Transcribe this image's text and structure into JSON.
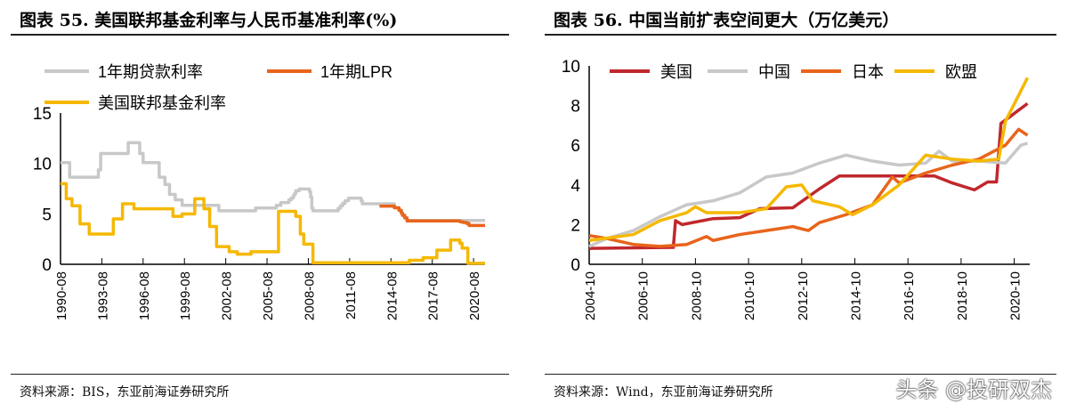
{
  "chart_data": [
    {
      "type": "line",
      "title": "图表 55. 美国联邦基金利率与人民币基准利率(%)",
      "source": "资料来源：BIS，东亚前海证券研究所",
      "ylim": [
        0,
        15
      ],
      "yticks": [
        0,
        5,
        10,
        15
      ],
      "xlim": [
        "1990-08",
        "2021-06"
      ],
      "xticks": [
        "1990-08",
        "1993-08",
        "1996-08",
        "1999-08",
        "2002-08",
        "2005-08",
        "2008-08",
        "2011-08",
        "2014-08",
        "2017-08",
        "2020-08"
      ],
      "step": true,
      "legend": "top-left",
      "series": [
        {
          "name": "1年期贷款利率",
          "color": "#c8c8c8",
          "points": [
            [
              "1990-08",
              10.08
            ],
            [
              "1991-04",
              8.64
            ],
            [
              "1993-05",
              9.36
            ],
            [
              "1993-07",
              10.98
            ],
            [
              "1995-01",
              10.98
            ],
            [
              "1995-07",
              12.06
            ],
            [
              "1996-05",
              10.98
            ],
            [
              "1996-08",
              10.08
            ],
            [
              "1997-10",
              8.64
            ],
            [
              "1998-03",
              7.92
            ],
            [
              "1998-07",
              6.93
            ],
            [
              "1998-12",
              6.39
            ],
            [
              "1999-06",
              5.85
            ],
            [
              "2002-02",
              5.31
            ],
            [
              "2004-10",
              5.58
            ],
            [
              "2006-04",
              5.85
            ],
            [
              "2006-08",
              6.12
            ],
            [
              "2007-03",
              6.39
            ],
            [
              "2007-05",
              6.57
            ],
            [
              "2007-07",
              6.84
            ],
            [
              "2007-08",
              7.02
            ],
            [
              "2007-09",
              7.29
            ],
            [
              "2007-12",
              7.47
            ],
            [
              "2008-09",
              7.2
            ],
            [
              "2008-10",
              6.66
            ],
            [
              "2008-11",
              5.58
            ],
            [
              "2008-12",
              5.31
            ],
            [
              "2010-10",
              5.56
            ],
            [
              "2010-12",
              5.81
            ],
            [
              "2011-02",
              6.06
            ],
            [
              "2011-04",
              6.31
            ],
            [
              "2011-07",
              6.56
            ],
            [
              "2012-06",
              6.31
            ],
            [
              "2012-07",
              6.0
            ],
            [
              "2014-11",
              5.6
            ],
            [
              "2015-03",
              5.35
            ],
            [
              "2015-05",
              5.1
            ],
            [
              "2015-06",
              4.85
            ],
            [
              "2015-08",
              4.6
            ],
            [
              "2015-10",
              4.35
            ],
            [
              "2021-06",
              4.35
            ]
          ]
        },
        {
          "name": "1年期LPR",
          "color": "#e8641b",
          "points": [
            [
              "2013-10",
              5.77
            ],
            [
              "2014-11",
              5.6
            ],
            [
              "2015-03",
              5.35
            ],
            [
              "2015-05",
              5.1
            ],
            [
              "2015-06",
              4.85
            ],
            [
              "2015-08",
              4.6
            ],
            [
              "2015-10",
              4.3
            ],
            [
              "2019-08",
              4.25
            ],
            [
              "2019-09",
              4.2
            ],
            [
              "2019-11",
              4.15
            ],
            [
              "2020-02",
              4.05
            ],
            [
              "2020-04",
              3.85
            ],
            [
              "2021-06",
              3.85
            ]
          ]
        },
        {
          "name": "美国联邦基金利率",
          "color": "#f5b800",
          "points": [
            [
              "1990-08",
              8.0
            ],
            [
              "1991-01",
              6.5
            ],
            [
              "1991-06",
              5.8
            ],
            [
              "1992-01",
              4.0
            ],
            [
              "1992-09",
              3.0
            ],
            [
              "1994-02",
              3.0
            ],
            [
              "1994-06",
              4.5
            ],
            [
              "1995-02",
              6.0
            ],
            [
              "1995-12",
              5.5
            ],
            [
              "1997-03",
              5.5
            ],
            [
              "1998-10",
              4.75
            ],
            [
              "1999-06",
              5.0
            ],
            [
              "2000-05",
              6.5
            ],
            [
              "2001-01",
              5.5
            ],
            [
              "2001-06",
              3.75
            ],
            [
              "2001-12",
              1.75
            ],
            [
              "2002-11",
              1.25
            ],
            [
              "2003-06",
              1.0
            ],
            [
              "2004-06",
              1.25
            ],
            [
              "2006-06",
              5.25
            ],
            [
              "2007-09",
              4.75
            ],
            [
              "2008-01",
              3.0
            ],
            [
              "2008-04",
              2.0
            ],
            [
              "2008-12",
              0.15
            ],
            [
              "2015-12",
              0.4
            ],
            [
              "2016-12",
              0.65
            ],
            [
              "2017-12",
              1.4
            ],
            [
              "2018-12",
              2.4
            ],
            [
              "2019-08",
              2.1
            ],
            [
              "2019-10",
              1.6
            ],
            [
              "2020-03",
              0.1
            ],
            [
              "2021-06",
              0.1
            ]
          ]
        }
      ]
    },
    {
      "type": "line",
      "title": "图表 56. 中国当前扩表空间更大（万亿美元）",
      "source": "资料来源：Wind，东亚前海证券研究所",
      "ylim": [
        0,
        10
      ],
      "yticks": [
        0,
        2,
        4,
        6,
        8,
        10
      ],
      "xlim": [
        "2004-10",
        "2021-05"
      ],
      "xticks": [
        "2004-10",
        "2006-10",
        "2008-10",
        "2010-10",
        "2012-10",
        "2014-10",
        "2016-10",
        "2018-10",
        "2020-10"
      ],
      "step": false,
      "legend": "top",
      "series": [
        {
          "name": "美国",
          "color": "#c0282d",
          "points": [
            [
              "2004-10",
              0.8
            ],
            [
              "2007-12",
              0.85
            ],
            [
              "2008-01",
              2.2
            ],
            [
              "2008-04",
              2.0
            ],
            [
              "2009-06",
              2.3
            ],
            [
              "2010-06",
              2.35
            ],
            [
              "2011-03",
              2.8
            ],
            [
              "2012-06",
              2.85
            ],
            [
              "2013-06",
              3.8
            ],
            [
              "2014-03",
              4.45
            ],
            [
              "2017-10",
              4.45
            ],
            [
              "2018-06",
              4.1
            ],
            [
              "2019-04",
              3.75
            ],
            [
              "2019-10",
              4.15
            ],
            [
              "2020-02",
              4.15
            ],
            [
              "2020-04",
              7.1
            ],
            [
              "2021-04",
              8.1
            ]
          ]
        },
        {
          "name": "中国",
          "color": "#c8c8c8",
          "points": [
            [
              "2004-10",
              0.9
            ],
            [
              "2005-06",
              1.3
            ],
            [
              "2006-06",
              1.7
            ],
            [
              "2007-06",
              2.4
            ],
            [
              "2008-06",
              3.0
            ],
            [
              "2009-06",
              3.2
            ],
            [
              "2010-06",
              3.6
            ],
            [
              "2011-06",
              4.4
            ],
            [
              "2012-06",
              4.6
            ],
            [
              "2013-06",
              5.1
            ],
            [
              "2014-06",
              5.5
            ],
            [
              "2015-06",
              5.2
            ],
            [
              "2016-06",
              5.0
            ],
            [
              "2017-06",
              5.1
            ],
            [
              "2017-12",
              5.7
            ],
            [
              "2018-06",
              5.2
            ],
            [
              "2019-06",
              5.2
            ],
            [
              "2020-06",
              5.1
            ],
            [
              "2021-01",
              6.0
            ],
            [
              "2021-04",
              6.1
            ]
          ]
        },
        {
          "name": "日本",
          "color": "#e8641b",
          "points": [
            [
              "2004-10",
              1.45
            ],
            [
              "2005-06",
              1.3
            ],
            [
              "2006-06",
              1.0
            ],
            [
              "2007-06",
              0.9
            ],
            [
              "2008-06",
              1.0
            ],
            [
              "2009-03",
              1.4
            ],
            [
              "2009-06",
              1.2
            ],
            [
              "2010-06",
              1.5
            ],
            [
              "2011-06",
              1.7
            ],
            [
              "2012-06",
              1.9
            ],
            [
              "2013-01",
              1.7
            ],
            [
              "2013-06",
              2.1
            ],
            [
              "2014-06",
              2.5
            ],
            [
              "2015-06",
              3.0
            ],
            [
              "2016-03",
              4.4
            ],
            [
              "2016-06",
              4.1
            ],
            [
              "2017-06",
              4.6
            ],
            [
              "2018-06",
              5.0
            ],
            [
              "2019-06",
              5.3
            ],
            [
              "2020-06",
              6.0
            ],
            [
              "2020-12",
              6.8
            ],
            [
              "2021-04",
              6.5
            ]
          ]
        },
        {
          "name": "欧盟",
          "color": "#f5b800",
          "points": [
            [
              "2004-10",
              1.2
            ],
            [
              "2006-06",
              1.5
            ],
            [
              "2007-06",
              2.2
            ],
            [
              "2008-06",
              2.6
            ],
            [
              "2008-10",
              2.9
            ],
            [
              "2009-03",
              2.6
            ],
            [
              "2010-06",
              2.6
            ],
            [
              "2011-06",
              2.8
            ],
            [
              "2012-03",
              3.9
            ],
            [
              "2012-10",
              4.0
            ],
            [
              "2013-03",
              3.2
            ],
            [
              "2014-03",
              2.9
            ],
            [
              "2014-09",
              2.5
            ],
            [
              "2015-06",
              3.0
            ],
            [
              "2016-06",
              4.0
            ],
            [
              "2017-06",
              5.5
            ],
            [
              "2018-06",
              5.3
            ],
            [
              "2019-06",
              5.2
            ],
            [
              "2020-03",
              5.3
            ],
            [
              "2020-06",
              7.2
            ],
            [
              "2021-04",
              9.4
            ]
          ]
        }
      ]
    }
  ],
  "watermark": "头条 @投研双杰"
}
